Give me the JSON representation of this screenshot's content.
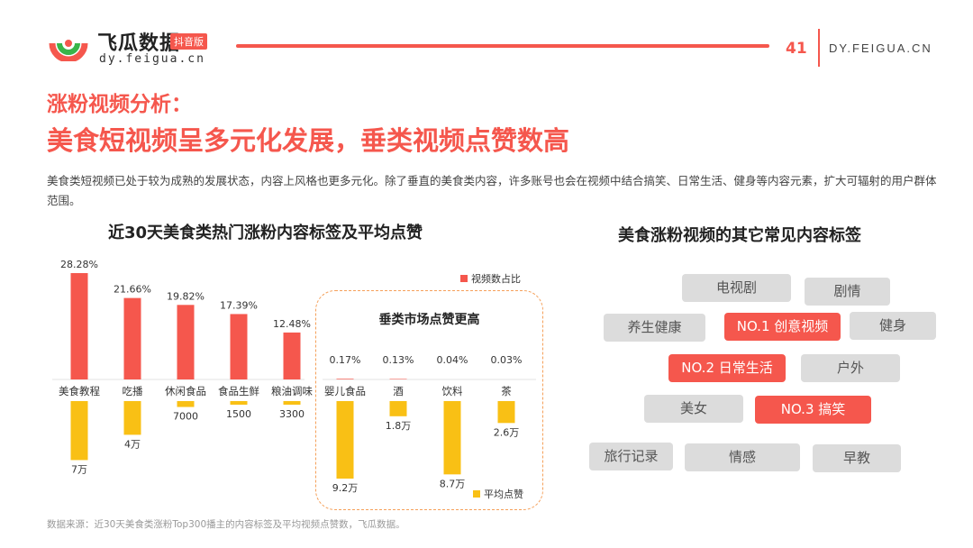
{
  "header": {
    "brand": "飞瓜数据",
    "badge": "抖音版",
    "brand_url": "dy.feigua.cn",
    "page_number": "41",
    "site_url": "DY.FEIGUA.CN"
  },
  "titles": {
    "line1": "涨粉视频分析：",
    "line2": "美食短视频呈多元化发展，垂类视频点赞数高"
  },
  "intro": "美食类短视频已处于较为成熟的发展状态，内容上风格也更多元化。除了垂直的美食类内容，许多账号也会在视频中结合搞笑、日常生活、健身等内容元素，扩大可辐射的用户群体范围。",
  "chart_data": {
    "type": "bar",
    "title": "近30天美食类热门涨粉内容标签及平均点赞",
    "categories": [
      "美食教程",
      "吃播",
      "休闲食品",
      "食品生鲜",
      "粮油调味",
      "婴儿食品",
      "酒",
      "饮料",
      "茶"
    ],
    "series": [
      {
        "name": "视频数占比",
        "values": [
          28.28,
          21.66,
          19.82,
          17.39,
          12.48,
          0.17,
          0.13,
          0.04,
          0.03
        ],
        "labels": [
          "28.28%",
          "21.66%",
          "19.82%",
          "17.39%",
          "12.48%",
          "0.17%",
          "0.13%",
          "0.04%",
          "0.03%"
        ],
        "color": "#f5574d"
      },
      {
        "name": "平均点赞",
        "values": [
          70000,
          40000,
          7000,
          1500,
          3300,
          92000,
          18000,
          87000,
          26000
        ],
        "labels": [
          "7万",
          "4万",
          "7000",
          "1500",
          "3300",
          "9.2万",
          "1.8万",
          "8.7万",
          "2.6万"
        ],
        "color": "#f9c015"
      }
    ],
    "highlight_group": {
      "title": "垂类市场点赞更高",
      "categories": [
        "婴儿食品",
        "酒",
        "饮料",
        "茶"
      ]
    },
    "legend": {
      "top": "视频数占比",
      "bottom": "平均点赞"
    }
  },
  "source": "数据来源：近30天美食类涨粉Top300播主的内容标签及平均视频点赞数，飞瓜数据。",
  "tags": {
    "title": "美食涨粉视频的其它常见内容标签",
    "items": [
      {
        "label": "电视剧",
        "style": "gray"
      },
      {
        "label": "剧情",
        "style": "gray"
      },
      {
        "label": "养生健康",
        "style": "gray"
      },
      {
        "label": "NO.1 创意视频",
        "style": "red"
      },
      {
        "label": "健身",
        "style": "gray"
      },
      {
        "label": "NO.2 日常生活",
        "style": "red"
      },
      {
        "label": "户外",
        "style": "gray"
      },
      {
        "label": "美女",
        "style": "gray"
      },
      {
        "label": "NO.3 搞笑",
        "style": "red"
      },
      {
        "label": "旅行记录",
        "style": "gray"
      },
      {
        "label": "情感",
        "style": "gray"
      },
      {
        "label": "早教",
        "style": "gray"
      }
    ]
  },
  "colors": {
    "accent": "#f5574d",
    "gold": "#f9c015",
    "tag_gray": "#dcdcdc"
  }
}
